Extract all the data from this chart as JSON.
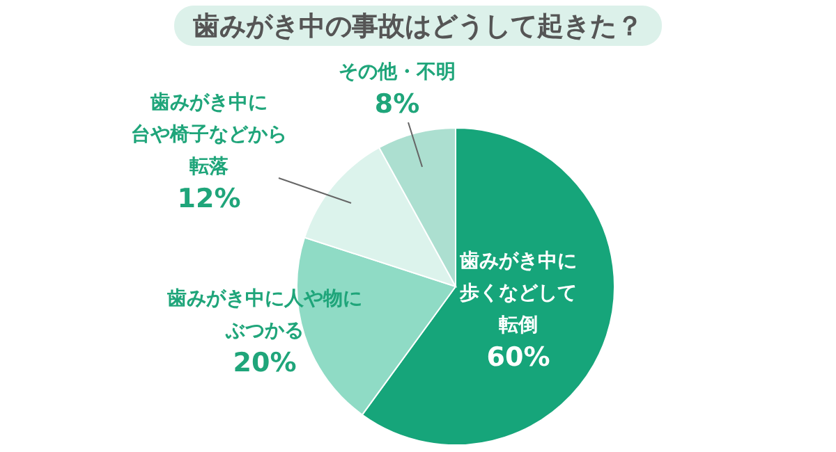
{
  "chart_data": {
    "type": "pie",
    "title": "歯みがき中の事故はどうして起きた？",
    "categories": [
      "歯みがき中に歩くなどして転倒",
      "歯みがき中に人や物にぶつかる",
      "歯みがき中に台や椅子などから転落",
      "その他・不明"
    ],
    "values": [
      60,
      20,
      12,
      8
    ],
    "colors": [
      "#16a57a",
      "#8fdbc5",
      "#dcf3ec",
      "#acdfd0"
    ],
    "value_labels": [
      "60%",
      "20%",
      "12%",
      "8%"
    ]
  }
}
